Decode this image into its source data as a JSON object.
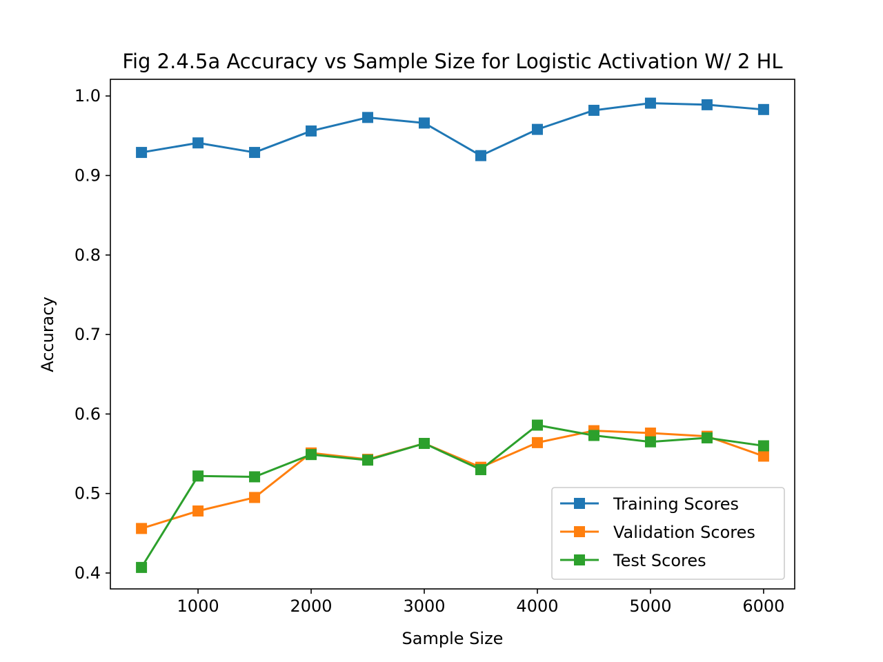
{
  "chart_data": {
    "type": "line",
    "title": "Fig 2.4.5a Accuracy vs Sample Size for Logistic Activation W/ 2 HL",
    "xlabel": "Sample Size",
    "ylabel": "Accuracy",
    "x": [
      500,
      1000,
      1500,
      2000,
      2500,
      3000,
      3500,
      4000,
      4500,
      5000,
      5500,
      6000
    ],
    "xlim": [
      225,
      6275
    ],
    "ylim": [
      0.38,
      1.021
    ],
    "xticks": [
      1000,
      2000,
      3000,
      4000,
      5000,
      6000
    ],
    "yticks": [
      0.4,
      0.5,
      0.6,
      0.7,
      0.8,
      0.9,
      1.0
    ],
    "xtick_labels": [
      "1000",
      "2000",
      "3000",
      "4000",
      "5000",
      "6000"
    ],
    "ytick_labels": [
      "0.4",
      "0.5",
      "0.6",
      "0.7",
      "0.8",
      "0.9",
      "1.0"
    ],
    "grid": false,
    "marker": "square",
    "legend_position": "lower-right",
    "series": [
      {
        "name": "Training Scores",
        "color": "#1f77b4",
        "values": [
          0.929,
          0.941,
          0.929,
          0.956,
          0.973,
          0.966,
          0.925,
          0.958,
          0.982,
          0.991,
          0.989,
          0.983
        ]
      },
      {
        "name": "Validation Scores",
        "color": "#ff7f0e",
        "values": [
          0.456,
          0.478,
          0.495,
          0.551,
          0.543,
          0.563,
          0.533,
          0.564,
          0.579,
          0.576,
          0.572,
          0.547
        ]
      },
      {
        "name": "Test Scores",
        "color": "#2ca02c",
        "values": [
          0.407,
          0.522,
          0.521,
          0.549,
          0.542,
          0.563,
          0.53,
          0.586,
          0.573,
          0.565,
          0.57,
          0.56
        ]
      }
    ]
  }
}
